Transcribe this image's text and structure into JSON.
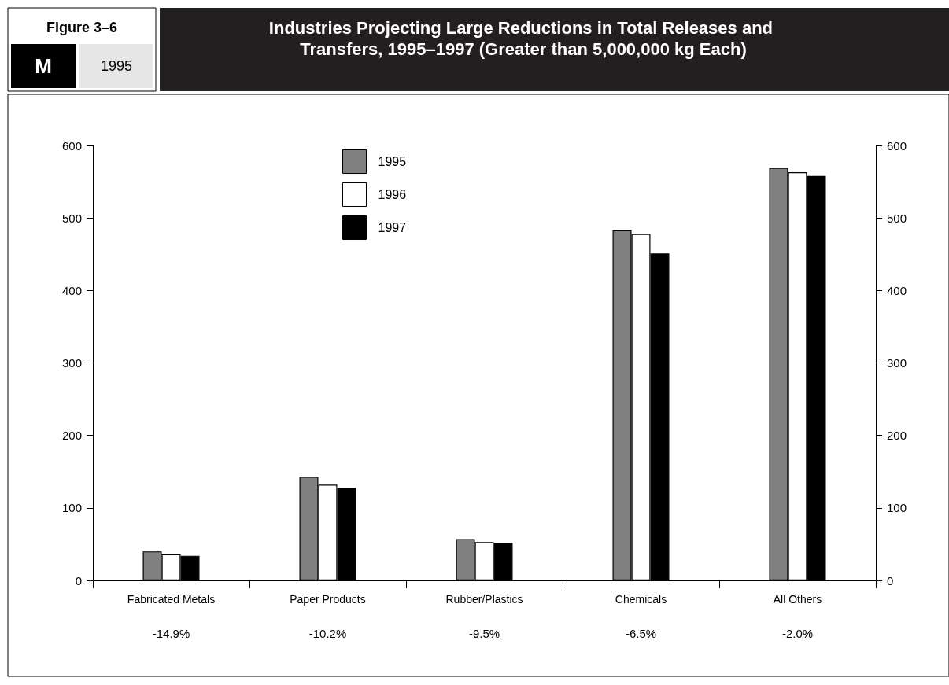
{
  "chart_data": {
    "type": "bar",
    "title": "Industries Projecting Large Reductions in Total Releases and Transfers, 1995–1997 (Greater than 5,000,000 kg Each)",
    "annotations": [
      "Figure 3–6",
      "M",
      "1995",
      "-14.9%",
      "-10.2%",
      "-9.5%",
      "-6.5%",
      "-2.0%"
    ],
    "categories": [
      "Fabricated Metals",
      "Paper Products",
      "Rubber/Plastics",
      "Chemicals",
      "All Others"
    ],
    "series": [
      {
        "name": "1995",
        "color": "#808080",
        "values": [
          40,
          143,
          57,
          483,
          569
        ]
      },
      {
        "name": "1996",
        "color": "#ffffff",
        "values": [
          36,
          132,
          53,
          478,
          563
        ]
      },
      {
        "name": "1997",
        "color": "#000000",
        "values": [
          34,
          128,
          52,
          451,
          558
        ]
      }
    ],
    "ylim": [
      0,
      600
    ],
    "yticks": [
      0,
      100,
      200,
      300,
      400,
      500,
      600
    ],
    "y2lim": [
      0,
      600
    ],
    "y2ticks": [
      0,
      100,
      200,
      300,
      400,
      500,
      600
    ],
    "grid": false,
    "legend": "top"
  }
}
